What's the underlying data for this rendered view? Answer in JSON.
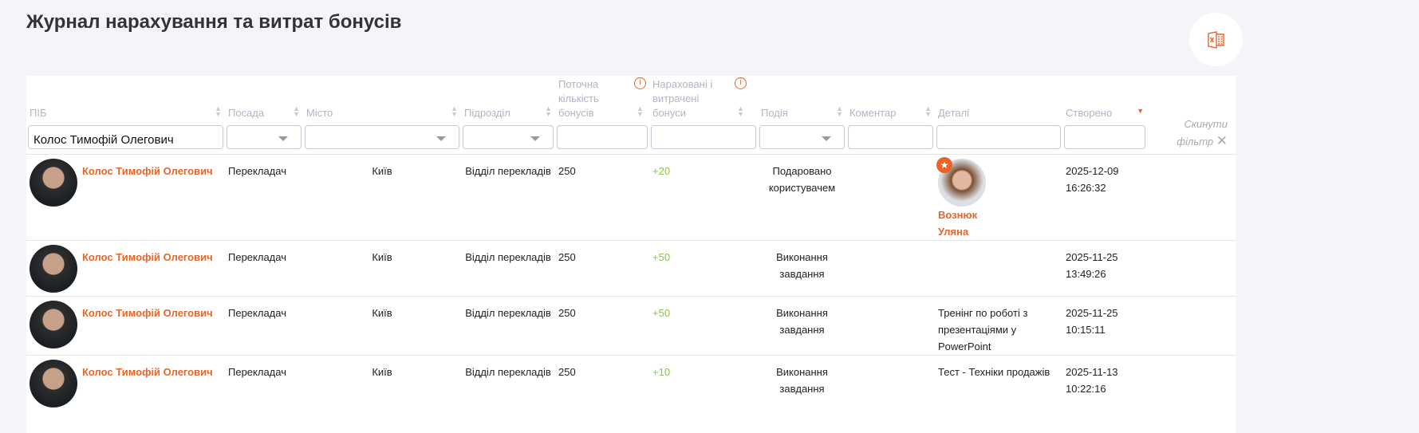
{
  "title": "Журнал нарахування та витрат бонусів",
  "export_icon": "excel-icon",
  "accent": "#e8652a",
  "columns": {
    "name": "ПІБ",
    "position": "Посада",
    "city": "Місто",
    "department": "Підрозділ",
    "current": "Поточна кількість бонусів",
    "accrued": "Нараховані і витрачені бонуси",
    "event": "Подія",
    "comment": "Коментар",
    "details": "Деталі",
    "created": "Створено"
  },
  "filters": {
    "name": "Колос Тимофій Олегович",
    "reset": "Скинути фільтр"
  },
  "rows": [
    {
      "name": "Колос Тимофій Олегович",
      "position": "Перекладач",
      "city": "Київ",
      "department": "Відділ перекладів",
      "current": "250",
      "accrued": "+20",
      "event": "Подаровано користувачем",
      "comment": "",
      "details_person": "Вознюк Уляна",
      "details": "",
      "created_date": "2025-12-09",
      "created_time": "16:26:32"
    },
    {
      "name": "Колос Тимофій Олегович",
      "position": "Перекладач",
      "city": "Київ",
      "department": "Відділ перекладів",
      "current": "250",
      "accrued": "+50",
      "event": "Виконання завдання",
      "comment": "",
      "details": "",
      "created_date": "2025-11-25",
      "created_time": "13:49:26"
    },
    {
      "name": "Колос Тимофій Олегович",
      "position": "Перекладач",
      "city": "Київ",
      "department": "Відділ перекладів",
      "current": "250",
      "accrued": "+50",
      "event": "Виконання завдання",
      "comment": "",
      "details": "Тренінг по роботі з презентаціями у PowerPoint",
      "created_date": "2025-11-25",
      "created_time": "10:15:11"
    },
    {
      "name": "Колос Тимофій Олегович",
      "position": "Перекладач",
      "city": "Київ",
      "department": "Відділ перекладів",
      "current": "250",
      "accrued": "+10",
      "event": "Виконання завдання",
      "comment": "",
      "details": "Тест - Техніки продажів",
      "created_date": "2025-11-13",
      "created_time": "10:22:16"
    }
  ]
}
